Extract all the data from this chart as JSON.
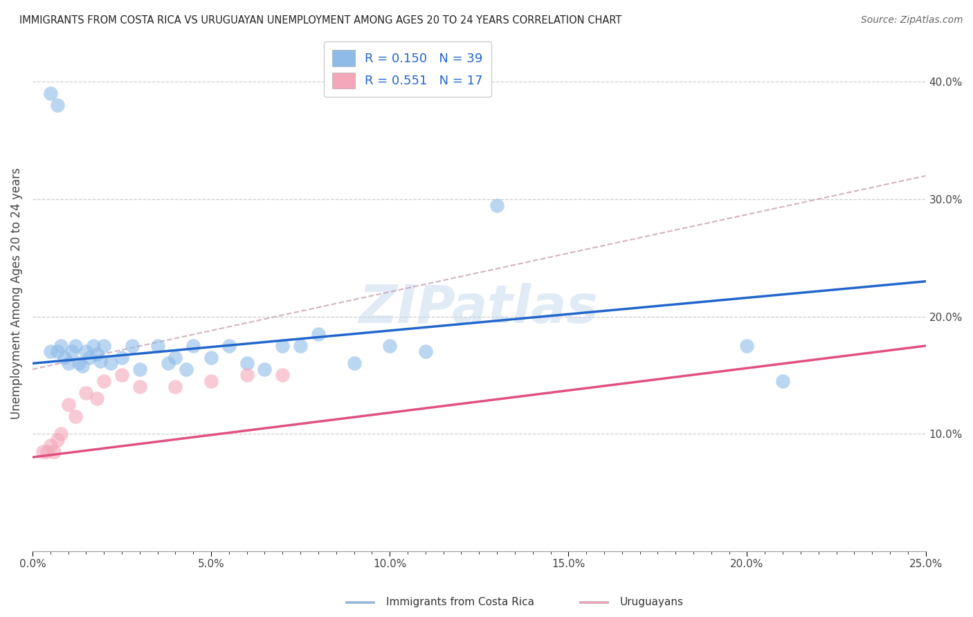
{
  "title": "IMMIGRANTS FROM COSTA RICA VS URUGUAYAN UNEMPLOYMENT AMONG AGES 20 TO 24 YEARS CORRELATION CHART",
  "source": "Source: ZipAtlas.com",
  "ylabel": "Unemployment Among Ages 20 to 24 years",
  "xlim": [
    0.0,
    0.25
  ],
  "ylim": [
    0.0,
    0.44
  ],
  "xtick_labels": [
    "0.0%",
    "",
    "",
    "",
    "",
    "",
    "",
    "",
    "",
    "",
    "5.0%",
    "",
    "",
    "",
    "",
    "",
    "",
    "",
    "",
    "",
    "10.0%",
    "",
    "",
    "",
    "",
    "",
    "",
    "",
    "",
    "",
    "15.0%",
    "",
    "",
    "",
    "",
    "",
    "",
    "",
    "",
    "",
    "20.0%",
    "",
    "",
    "",
    "",
    "",
    "",
    "",
    "",
    "",
    "25.0%"
  ],
  "xtick_vals": [
    0.0,
    0.005,
    0.01,
    0.015,
    0.02,
    0.025,
    0.03,
    0.035,
    0.04,
    0.045,
    0.05,
    0.055,
    0.06,
    0.065,
    0.07,
    0.075,
    0.08,
    0.085,
    0.09,
    0.095,
    0.1,
    0.105,
    0.11,
    0.115,
    0.12,
    0.125,
    0.13,
    0.135,
    0.14,
    0.145,
    0.15,
    0.155,
    0.16,
    0.165,
    0.17,
    0.175,
    0.18,
    0.185,
    0.19,
    0.195,
    0.2,
    0.205,
    0.21,
    0.215,
    0.22,
    0.225,
    0.23,
    0.235,
    0.24,
    0.245,
    0.25
  ],
  "xtick_major_labels": [
    "0.0%",
    "5.0%",
    "10.0%",
    "15.0%",
    "20.0%",
    "25.0%"
  ],
  "xtick_major_vals": [
    0.0,
    0.05,
    0.1,
    0.15,
    0.2,
    0.25
  ],
  "ytick_labels": [
    "10.0%",
    "20.0%",
    "30.0%",
    "40.0%"
  ],
  "ytick_vals": [
    0.1,
    0.2,
    0.3,
    0.4
  ],
  "legend1_label": "R = 0.150   N = 39",
  "legend2_label": "R = 0.551   N = 17",
  "legend_loc_label1": "Immigrants from Costa Rica",
  "legend_loc_label2": "Uruguayans",
  "blue_color": "#8fbbe8",
  "pink_color": "#f4a7bb",
  "blue_line_color": "#2266cc",
  "pink_line_color": "#e05080",
  "gray_dash_color": "#c8a0b0",
  "watermark": "ZIPatlas",
  "blue_scatter_x": [
    0.005,
    0.007,
    0.005,
    0.007,
    0.008,
    0.009,
    0.01,
    0.011,
    0.012,
    0.013,
    0.014,
    0.015,
    0.016,
    0.017,
    0.018,
    0.019,
    0.02,
    0.022,
    0.025,
    0.028,
    0.03,
    0.035,
    0.038,
    0.04,
    0.043,
    0.045,
    0.05,
    0.055,
    0.06,
    0.065,
    0.07,
    0.075,
    0.08,
    0.09,
    0.1,
    0.11,
    0.13,
    0.2,
    0.21
  ],
  "blue_scatter_y": [
    0.39,
    0.38,
    0.17,
    0.17,
    0.175,
    0.165,
    0.16,
    0.17,
    0.175,
    0.16,
    0.158,
    0.17,
    0.165,
    0.175,
    0.168,
    0.162,
    0.175,
    0.16,
    0.165,
    0.175,
    0.155,
    0.175,
    0.16,
    0.165,
    0.155,
    0.175,
    0.165,
    0.175,
    0.16,
    0.155,
    0.175,
    0.175,
    0.185,
    0.16,
    0.175,
    0.17,
    0.295,
    0.175,
    0.145
  ],
  "pink_scatter_x": [
    0.003,
    0.004,
    0.005,
    0.006,
    0.007,
    0.008,
    0.01,
    0.012,
    0.015,
    0.018,
    0.02,
    0.025,
    0.03,
    0.04,
    0.05,
    0.06,
    0.07
  ],
  "pink_scatter_y": [
    0.085,
    0.085,
    0.09,
    0.085,
    0.095,
    0.1,
    0.125,
    0.115,
    0.135,
    0.13,
    0.145,
    0.15,
    0.14,
    0.14,
    0.145,
    0.15,
    0.15
  ],
  "blue_line_x": [
    0.0,
    0.25
  ],
  "blue_line_y": [
    0.16,
    0.23
  ],
  "pink_line_x": [
    0.0,
    0.25
  ],
  "pink_line_y": [
    0.08,
    0.175
  ],
  "gray_dash_line_x": [
    0.0,
    0.25
  ],
  "gray_dash_line_y": [
    0.155,
    0.32
  ],
  "background_color": "#ffffff",
  "grid_color": "#cccccc"
}
